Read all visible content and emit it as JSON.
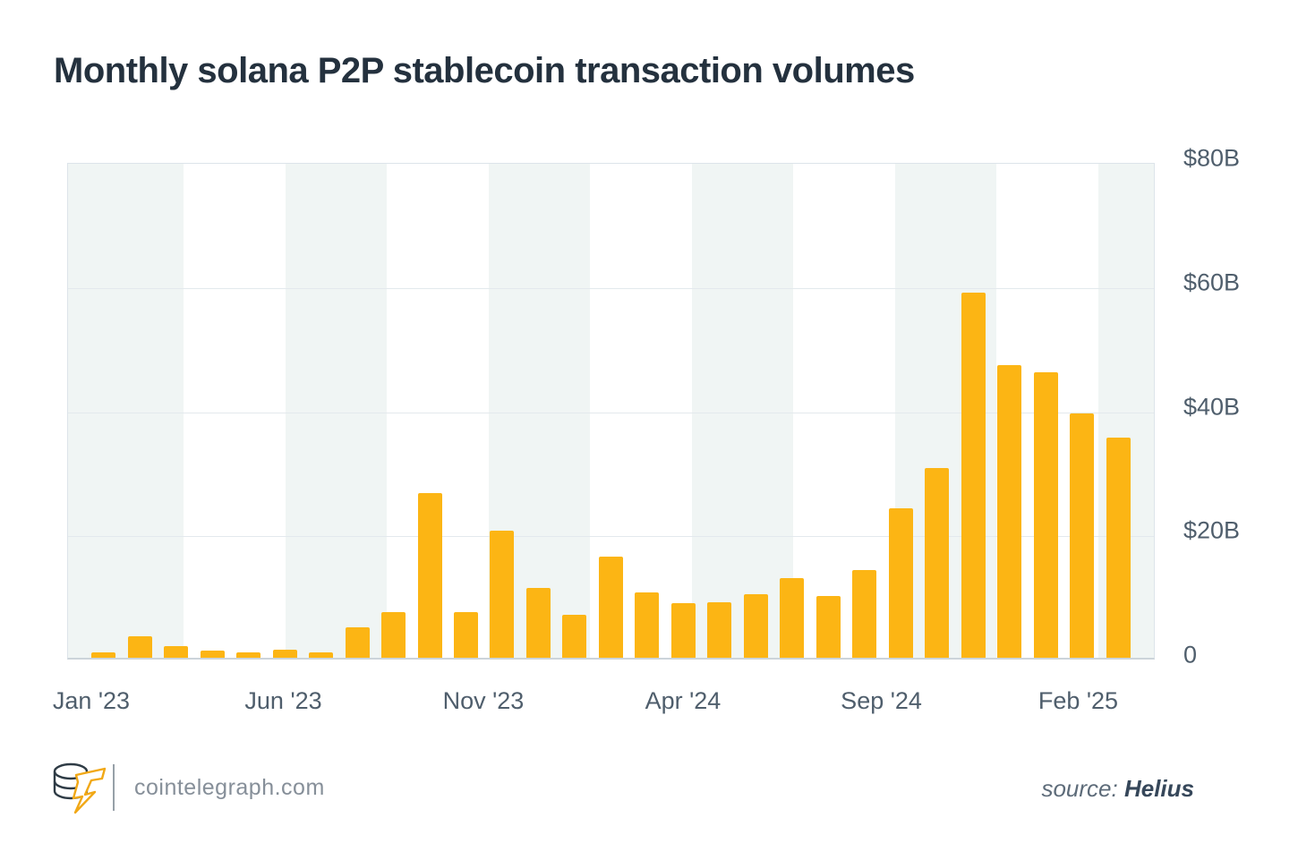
{
  "header": {
    "title": "Monthly solana P2P stablecoin transaction volumes"
  },
  "chart_data": {
    "type": "bar",
    "title": "Monthly solana P2P stablecoin transaction volumes",
    "unit": "USD billions",
    "x": [
      "Jan '23",
      "Feb '23",
      "Mar '23",
      "Apr '23",
      "May '23",
      "Jun '23",
      "Jul '23",
      "Aug '23",
      "Sep '23",
      "Oct '23",
      "Nov '23",
      "Dec '23",
      "Jan '24",
      "Feb '24",
      "Mar '24",
      "Apr '24",
      "May '24",
      "Jun '24",
      "Jul '24",
      "Aug '24",
      "Sep '24",
      "Oct '24",
      "Nov '24",
      "Dec '24",
      "Jan '25",
      "Feb '25",
      "Mar '25",
      "Apr '25",
      "May '25"
    ],
    "values": [
      0.9,
      3.5,
      1.9,
      1.1,
      0.8,
      1.3,
      0.9,
      4.9,
      7.3,
      26.5,
      7.3,
      20.5,
      11.2,
      6.9,
      16.3,
      10.5,
      8.8,
      9.0,
      10.3,
      12.9,
      9.9,
      14.2,
      24.1,
      30.5,
      58.8,
      47.2,
      46.0,
      39.4,
      35.5
    ],
    "x_tick_labels": [
      "Jan '23",
      "Jun '23",
      "Nov '23",
      "Apr '24",
      "Sep '24",
      "Feb '25"
    ],
    "x_tick_positions_pct": [
      2.22,
      19.88,
      38.27,
      56.62,
      74.86,
      92.96
    ],
    "y_ticks": [
      {
        "label": "$80B",
        "value": 80
      },
      {
        "label": "$60B",
        "value": 60
      },
      {
        "label": "$40B",
        "value": 40
      },
      {
        "label": "$20B",
        "value": 20
      },
      {
        "label": "0",
        "value": 0
      }
    ],
    "ylim": [
      0,
      80
    ],
    "grid": true,
    "legend": false,
    "bar_color": "#FCB514",
    "stripe_color": "#F0F5F4",
    "gridline_color": "#E3E9ED"
  },
  "footer": {
    "site": "cointelegraph.com",
    "source_label": "source:",
    "source_name": "Helius"
  },
  "icons": {
    "logo": "cointelegraph-coin-stack-lightning-logo"
  }
}
